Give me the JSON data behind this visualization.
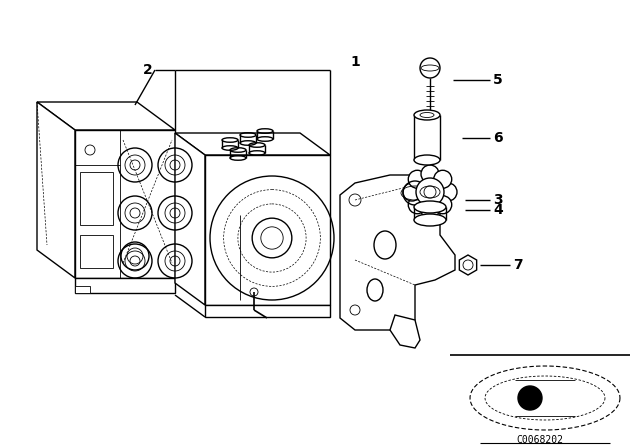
{
  "background_color": "#ffffff",
  "line_color": "#000000",
  "fig_width": 6.4,
  "fig_height": 4.48,
  "dpi": 100,
  "watermark": "C0068202",
  "label_fontsize": 10,
  "watermark_fontsize": 7
}
